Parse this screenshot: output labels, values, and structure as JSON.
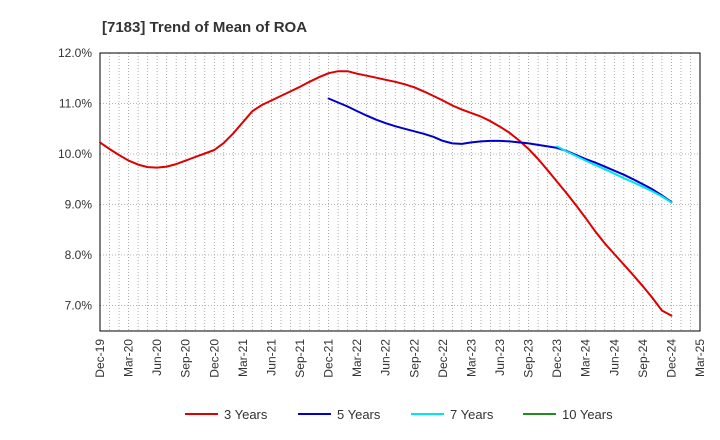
{
  "chart_data": {
    "type": "line",
    "title": "[7183]  Trend of Mean of ROA",
    "xlabel": "",
    "ylabel": "",
    "y_unit": "%",
    "ylim": [
      6.5,
      12.0
    ],
    "y_ticks": [
      "12.0%",
      "11.0%",
      "10.0%",
      "9.0%",
      "8.0%",
      "7.0%"
    ],
    "y_tick_values": [
      12.0,
      11.0,
      10.0,
      9.0,
      8.0,
      7.0
    ],
    "x_ticks": [
      "Dec-19",
      "Mar-20",
      "Jun-20",
      "Sep-20",
      "Dec-20",
      "Mar-21",
      "Jun-21",
      "Sep-21",
      "Dec-21",
      "Mar-22",
      "Jun-22",
      "Sep-22",
      "Dec-22",
      "Mar-23",
      "Jun-23",
      "Sep-23",
      "Dec-23",
      "Mar-24",
      "Jun-24",
      "Sep-24",
      "Dec-24",
      "Mar-25"
    ],
    "grid": true,
    "legend_position": "bottom",
    "series": [
      {
        "name": "3 Years",
        "color": "#dd0000",
        "x": [
          "Dec-19",
          "Jan-20",
          "Feb-20",
          "Mar-20",
          "Apr-20",
          "May-20",
          "Jun-20",
          "Jul-20",
          "Aug-20",
          "Sep-20",
          "Oct-20",
          "Nov-20",
          "Dec-20",
          "Jan-21",
          "Feb-21",
          "Mar-21",
          "Apr-21",
          "May-21",
          "Jun-21",
          "Jul-21",
          "Aug-21",
          "Sep-21",
          "Oct-21",
          "Nov-21",
          "Dec-21",
          "Jan-22",
          "Feb-22",
          "Mar-22",
          "Apr-22",
          "May-22",
          "Jun-22",
          "Jul-22",
          "Aug-22",
          "Sep-22",
          "Oct-22",
          "Nov-22",
          "Dec-22",
          "Jan-23",
          "Feb-23",
          "Mar-23",
          "Apr-23",
          "May-23",
          "Jun-23",
          "Jul-23",
          "Aug-23",
          "Sep-23",
          "Oct-23",
          "Nov-23",
          "Dec-23",
          "Jan-24",
          "Feb-24",
          "Mar-24",
          "Apr-24",
          "May-24",
          "Jun-24",
          "Jul-24",
          "Aug-24",
          "Sep-24",
          "Oct-24",
          "Nov-24",
          "Dec-24"
        ],
        "values": [
          10.23,
          10.1,
          9.98,
          9.87,
          9.79,
          9.74,
          9.73,
          9.75,
          9.8,
          9.87,
          9.94,
          10.01,
          10.08,
          10.22,
          10.41,
          10.63,
          10.85,
          10.97,
          11.06,
          11.15,
          11.24,
          11.33,
          11.43,
          11.52,
          11.6,
          11.64,
          11.64,
          11.59,
          11.55,
          11.51,
          11.47,
          11.43,
          11.38,
          11.32,
          11.24,
          11.15,
          11.06,
          10.96,
          10.88,
          10.81,
          10.74,
          10.65,
          10.54,
          10.42,
          10.27,
          10.1,
          9.9,
          9.68,
          9.45,
          9.22,
          8.98,
          8.73,
          8.47,
          8.23,
          8.02,
          7.81,
          7.6,
          7.38,
          7.15,
          6.9,
          6.8
        ]
      },
      {
        "name": "5 Years",
        "color": "#0000cc",
        "x": [
          "Dec-21",
          "Jan-22",
          "Feb-22",
          "Mar-22",
          "Apr-22",
          "May-22",
          "Jun-22",
          "Jul-22",
          "Aug-22",
          "Sep-22",
          "Oct-22",
          "Nov-22",
          "Dec-22",
          "Jan-23",
          "Feb-23",
          "Mar-23",
          "Apr-23",
          "May-23",
          "Jun-23",
          "Jul-23",
          "Aug-23",
          "Sep-23",
          "Oct-23",
          "Nov-23",
          "Dec-23",
          "Jan-24",
          "Feb-24",
          "Mar-24",
          "Apr-24",
          "May-24",
          "Jun-24",
          "Jul-24",
          "Aug-24",
          "Sep-24",
          "Oct-24",
          "Nov-24",
          "Dec-24"
        ],
        "values": [
          11.1,
          11.02,
          10.94,
          10.85,
          10.76,
          10.68,
          10.61,
          10.55,
          10.5,
          10.45,
          10.4,
          10.34,
          10.26,
          10.21,
          10.2,
          10.23,
          10.25,
          10.26,
          10.26,
          10.25,
          10.23,
          10.21,
          10.18,
          10.15,
          10.12,
          10.06,
          9.98,
          9.9,
          9.83,
          9.75,
          9.67,
          9.59,
          9.5,
          9.4,
          9.3,
          9.18,
          9.05
        ]
      },
      {
        "name": "7 Years",
        "color": "#00e5ee",
        "x": [
          "Dec-23",
          "Jan-24",
          "Feb-24",
          "Mar-24",
          "Apr-24",
          "May-24",
          "Jun-24",
          "Jul-24",
          "Aug-24",
          "Sep-24",
          "Oct-24",
          "Nov-24",
          "Dec-24"
        ],
        "values": [
          10.15,
          10.05,
          9.96,
          9.87,
          9.78,
          9.7,
          9.61,
          9.52,
          9.44,
          9.35,
          9.26,
          9.16,
          9.04
        ]
      },
      {
        "name": "10 Years",
        "color": "#228b22",
        "x": [],
        "values": []
      }
    ]
  }
}
